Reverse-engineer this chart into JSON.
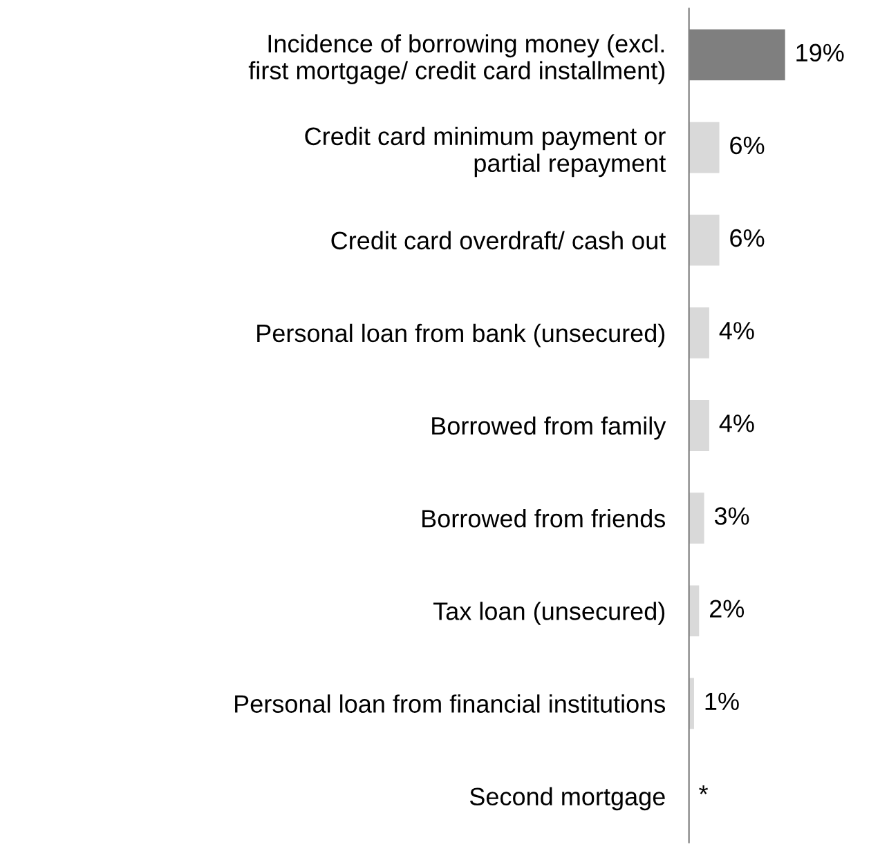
{
  "chart_data": {
    "type": "bar",
    "orientation": "horizontal",
    "categories": [
      "Incidence of borrowing money (excl.\nfirst mortgage/ credit card installment)",
      "Credit card minimum payment or\npartial repayment",
      "Credit card overdraft/ cash out",
      "Personal loan from bank (unsecured)",
      "Borrowed from family",
      "Borrowed from friends",
      "Tax loan (unsecured)",
      "Personal loan from financial institutions",
      "Second mortgage"
    ],
    "values": [
      19,
      6,
      6,
      4,
      4,
      3,
      2,
      1,
      null
    ],
    "colors": [
      "#7f7f7f",
      "#d9d9d9",
      "#d9d9d9",
      "#d9d9d9",
      "#d9d9d9",
      "#d9d9d9",
      "#d9d9d9",
      "#d9d9d9",
      "#d9d9d9"
    ],
    "value_labels": [
      "19%",
      "6%",
      "6%",
      "4%",
      "4%",
      "3%",
      "2%",
      "1%",
      "*"
    ],
    "grid": false,
    "legend": false
  }
}
